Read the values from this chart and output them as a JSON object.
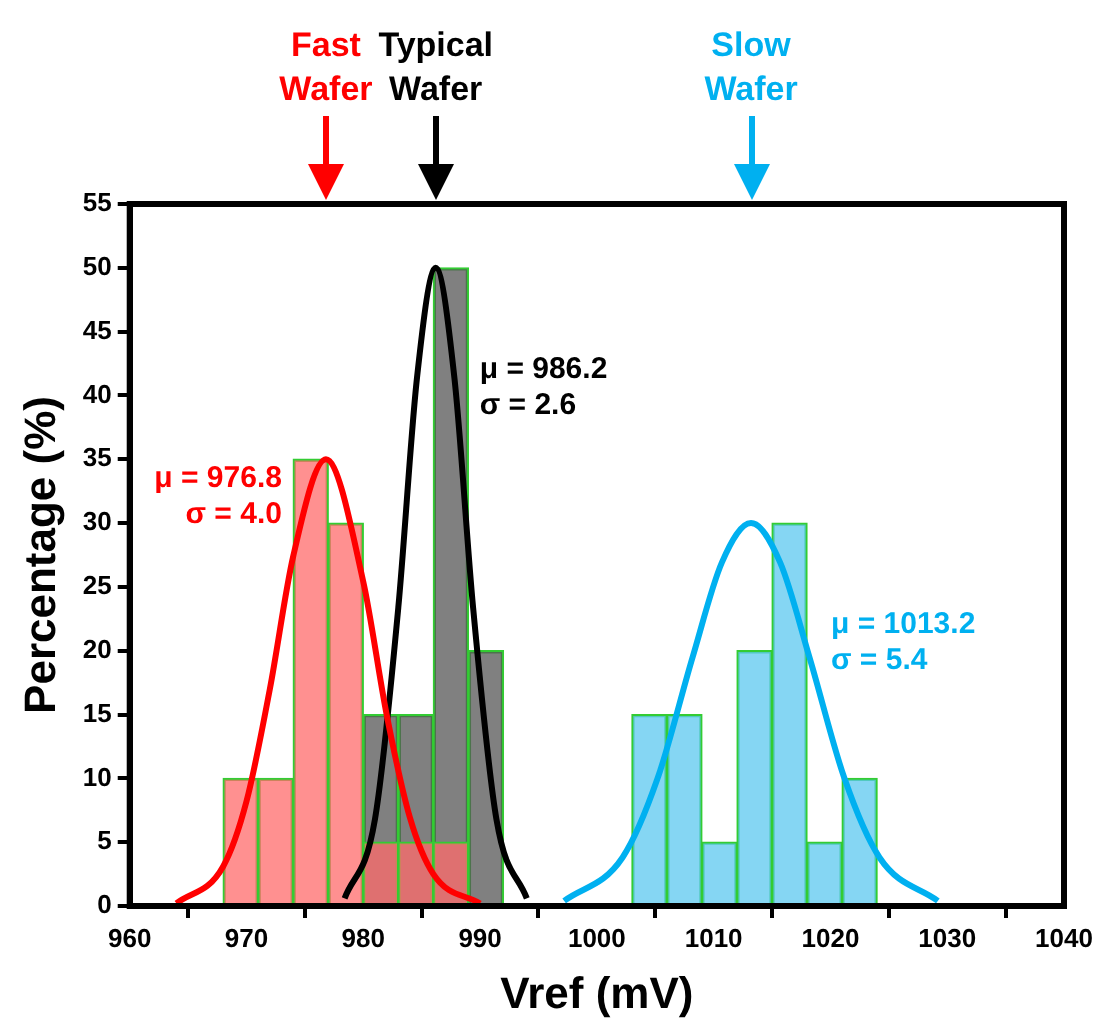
{
  "chart_data": {
    "type": "histogram",
    "xlabel": "Vref (mV)",
    "ylabel": "Percentage (%)",
    "xlim": [
      960,
      1040
    ],
    "xticks": [
      960,
      970,
      980,
      990,
      1000,
      1010,
      1020,
      1030,
      1040
    ],
    "ylim": [
      0,
      55
    ],
    "yticks": [
      0,
      5,
      10,
      15,
      20,
      25,
      30,
      35,
      40,
      45,
      50,
      55
    ],
    "series": [
      {
        "color": "#ff6b6b",
        "bins": [
          968,
          971,
          974,
          977,
          980,
          983,
          986,
          989
        ],
        "values": [
          10,
          10,
          35,
          30,
          5,
          5,
          5
        ]
      },
      {
        "color": "#555555",
        "bins": [
          980,
          983,
          986,
          989,
          992
        ],
        "values": [
          15,
          15,
          50,
          20
        ]
      },
      {
        "color": "#5cc8ef",
        "bins": [
          1003,
          1006,
          1009,
          1012,
          1015,
          1018,
          1021,
          1024
        ],
        "values": [
          15,
          15,
          5,
          20,
          30,
          5,
          10
        ]
      },
      {
        "type": "line",
        "color": "#ff0000",
        "x": [
          964,
          968,
          970,
          972,
          974,
          976.8,
          980,
          982,
          984,
          986,
          990
        ],
        "values": [
          0.2,
          3.1,
          8.2,
          17,
          27.4,
          35,
          25.4,
          15,
          6.9,
          2.5,
          0.2
        ]
      },
      {
        "type": "line",
        "color": "#000000",
        "x": [
          978.4,
          981,
          983,
          984.6,
          986.2,
          987.8,
          989.4,
          991.4,
          994
        ],
        "values": [
          0.6,
          6.8,
          23.4,
          41.4,
          50,
          41.4,
          23.4,
          6.8,
          0.6
        ]
      },
      {
        "type": "line",
        "color": "#00b0f0",
        "x": [
          997.2,
          1002.2,
          1005.2,
          1008.2,
          1010.7,
          1013.2,
          1015.7,
          1018.2,
          1021.2,
          1024.2,
          1029.2
        ],
        "values": [
          0.4,
          3.8,
          10,
          19.5,
          26.9,
          30,
          26.9,
          19.5,
          10,
          3.8,
          0.4
        ]
      }
    ],
    "annotations": [
      "Fast\nWafer",
      "Typical\nWafer",
      "Slow\nWafer",
      "μ = 976.8\nσ = 4.0",
      "μ = 986.2\nσ = 2.6",
      "μ = 1013.2\nσ = 5.4"
    ]
  }
}
